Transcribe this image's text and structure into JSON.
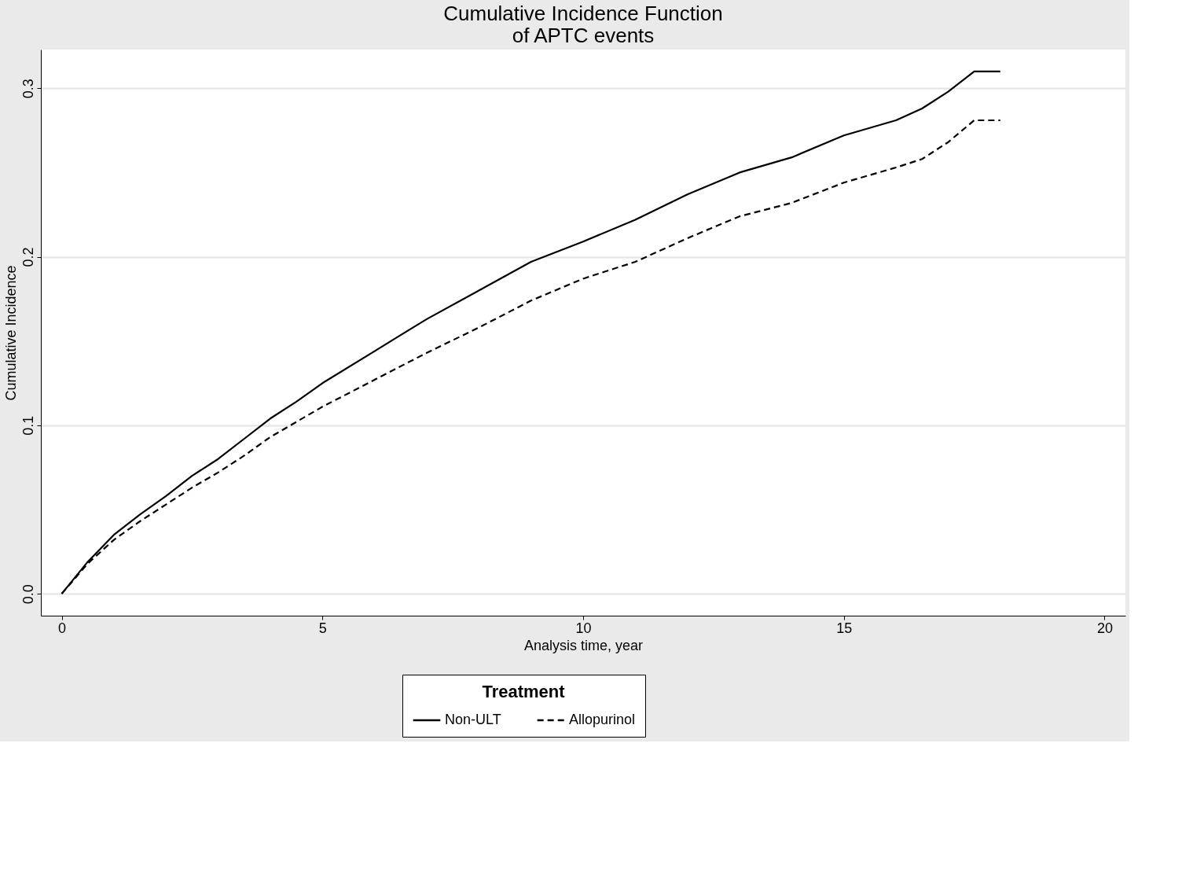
{
  "chart_data": {
    "type": "line",
    "title": [
      "Cumulative Incidence Function",
      "of APTC events"
    ],
    "xlabel": "Analysis time, year",
    "ylabel": "Cumulative Incidence",
    "legend_title": "Treatment",
    "legend": "bottom",
    "grid": "y",
    "xlim": [
      -0.4,
      20.4
    ],
    "ylim": [
      -0.013,
      0.323
    ],
    "xticks": [
      0,
      5,
      10,
      15,
      20
    ],
    "yticks": [
      {
        "value": 0,
        "label": "0.0"
      },
      0.1,
      0.2,
      0.3
    ],
    "x": [
      0,
      0.5,
      1,
      1.5,
      2,
      2.5,
      3,
      3.5,
      4,
      4.5,
      5,
      6,
      7,
      8,
      9,
      10,
      11,
      12,
      13,
      14,
      15,
      16,
      16.5,
      17,
      17.5,
      18
    ],
    "series": [
      {
        "name": "Non-ULT",
        "color": "#000000",
        "line_style": "solid",
        "values": [
          0,
          0.019,
          0.035,
          0.047,
          0.058,
          0.07,
          0.08,
          0.092,
          0.104,
          0.114,
          0.125,
          0.144,
          0.163,
          0.18,
          0.197,
          0.209,
          0.222,
          0.237,
          0.25,
          0.259,
          0.272,
          0.281,
          0.288,
          0.298,
          0.31,
          0.31
        ]
      },
      {
        "name": "Allopurinol",
        "color": "#000000",
        "line_style": "dashed",
        "values": [
          0,
          0.018,
          0.032,
          0.043,
          0.053,
          0.063,
          0.072,
          0.082,
          0.093,
          0.102,
          0.111,
          0.127,
          0.143,
          0.158,
          0.174,
          0.187,
          0.197,
          0.211,
          0.224,
          0.232,
          0.244,
          0.253,
          0.258,
          0.268,
          0.281,
          0.281
        ]
      }
    ]
  }
}
